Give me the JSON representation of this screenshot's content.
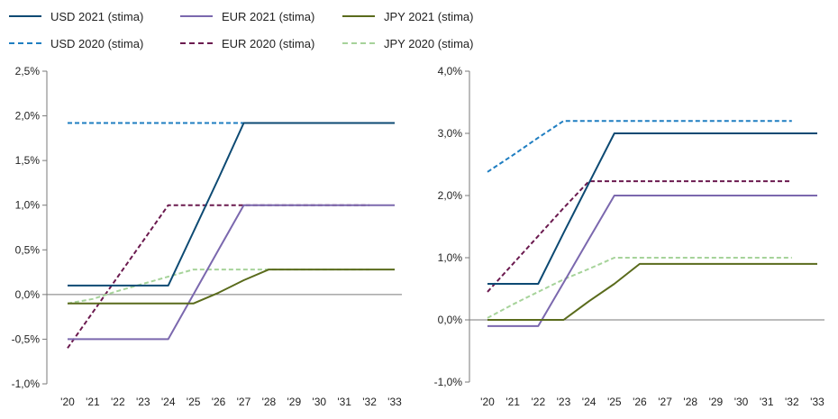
{
  "legend": [
    {
      "label": "USD 2021 (stima)",
      "color": "#0d4a73",
      "dashed": false
    },
    {
      "label": "EUR 2021 (stima)",
      "color": "#7b68ae",
      "dashed": false
    },
    {
      "label": "JPY 2021 (stima)",
      "color": "#5a6b1c",
      "dashed": false
    },
    {
      "label": "USD 2020 (stima)",
      "color": "#1f7ec1",
      "dashed": true
    },
    {
      "label": "EUR 2020 (stima)",
      "color": "#6b1a4f",
      "dashed": true
    },
    {
      "label": "JPY 2020 (stima)",
      "color": "#a6d39a",
      "dashed": true
    }
  ],
  "chart_data": [
    {
      "type": "line",
      "x": [
        "'20",
        "'21",
        "'22",
        "'23",
        "'24",
        "'25",
        "'26",
        "'27",
        "'28",
        "'29",
        "'30",
        "'31",
        "'32",
        "'33"
      ],
      "ylim": [
        -1.0,
        2.5
      ],
      "yticks": [
        "-1,0%",
        "-0,5%",
        "0,0%",
        "0,5%",
        "1,0%",
        "1,5%",
        "2,0%",
        "2,5%"
      ],
      "grid": false,
      "series": [
        {
          "name": "USD 2021 (stima)",
          "color": "#0d4a73",
          "dashed": false,
          "values": [
            0.1,
            0.1,
            0.1,
            0.1,
            0.1,
            0.7,
            1.3,
            1.92,
            1.92,
            1.92,
            1.92,
            1.92,
            1.92,
            1.92
          ]
        },
        {
          "name": "EUR 2021 (stima)",
          "color": "#7b68ae",
          "dashed": false,
          "values": [
            -0.5,
            -0.5,
            -0.5,
            -0.5,
            -0.5,
            0.0,
            0.5,
            1.0,
            1.0,
            1.0,
            1.0,
            1.0,
            1.0,
            1.0
          ]
        },
        {
          "name": "JPY 2021 (stima)",
          "color": "#5a6b1c",
          "dashed": false,
          "values": [
            -0.1,
            -0.1,
            -0.1,
            -0.1,
            -0.1,
            -0.1,
            0.02,
            0.16,
            0.28,
            0.28,
            0.28,
            0.28,
            0.28,
            0.28
          ]
        },
        {
          "name": "USD 2020 (stima)",
          "color": "#1f7ec1",
          "dashed": true,
          "values": [
            1.92,
            1.92,
            1.92,
            1.92,
            1.92,
            1.92,
            1.92,
            1.92,
            1.92,
            1.92,
            1.92,
            1.92,
            1.92,
            1.92
          ]
        },
        {
          "name": "EUR 2020 (stima)",
          "color": "#6b1a4f",
          "dashed": true,
          "values": [
            -0.6,
            -0.2,
            0.2,
            0.6,
            1.0,
            1.0,
            1.0,
            1.0,
            1.0,
            1.0,
            1.0,
            1.0,
            1.0,
            null
          ]
        },
        {
          "name": "JPY 2020 (stima)",
          "color": "#a6d39a",
          "dashed": true,
          "values": [
            -0.1,
            -0.05,
            0.04,
            0.12,
            0.2,
            0.28,
            0.28,
            0.28,
            0.28,
            0.28,
            0.28,
            0.28,
            0.28,
            null
          ]
        }
      ]
    },
    {
      "type": "line",
      "x": [
        "'20",
        "'21",
        "'22",
        "'23",
        "'24",
        "'25",
        "'26",
        "'27",
        "'28",
        "'29",
        "'30",
        "'31",
        "'32",
        "'33"
      ],
      "ylim": [
        -1.0,
        4.0
      ],
      "yticks": [
        "-1,0%",
        "0,0%",
        "1,0%",
        "2,0%",
        "3,0%",
        "4,0%"
      ],
      "grid": false,
      "series": [
        {
          "name": "USD 2021 (stima)",
          "color": "#0d4a73",
          "dashed": false,
          "values": [
            0.58,
            0.58,
            0.58,
            1.4,
            2.2,
            3.0,
            3.0,
            3.0,
            3.0,
            3.0,
            3.0,
            3.0,
            3.0,
            3.0
          ]
        },
        {
          "name": "EUR 2021 (stima)",
          "color": "#7b68ae",
          "dashed": false,
          "values": [
            -0.1,
            -0.1,
            -0.1,
            0.6,
            1.3,
            2.0,
            2.0,
            2.0,
            2.0,
            2.0,
            2.0,
            2.0,
            2.0,
            2.0
          ]
        },
        {
          "name": "JPY 2021 (stima)",
          "color": "#5a6b1c",
          "dashed": false,
          "values": [
            0.0,
            0.0,
            0.0,
            0.0,
            0.3,
            0.58,
            0.9,
            0.9,
            0.9,
            0.9,
            0.9,
            0.9,
            0.9,
            0.9
          ]
        },
        {
          "name": "USD 2020 (stima)",
          "color": "#1f7ec1",
          "dashed": true,
          "values": [
            2.38,
            2.65,
            2.93,
            3.2,
            3.2,
            3.2,
            3.2,
            3.2,
            3.2,
            3.2,
            3.2,
            3.2,
            3.2,
            null
          ]
        },
        {
          "name": "EUR 2020 (stima)",
          "color": "#6b1a4f",
          "dashed": true,
          "values": [
            0.45,
            0.9,
            1.35,
            1.8,
            2.23,
            2.23,
            2.23,
            2.23,
            2.23,
            2.23,
            2.23,
            2.23,
            2.23,
            null
          ]
        },
        {
          "name": "JPY 2020 (stima)",
          "color": "#a6d39a",
          "dashed": true,
          "values": [
            0.03,
            0.25,
            0.45,
            0.65,
            0.82,
            1.0,
            1.0,
            1.0,
            1.0,
            1.0,
            1.0,
            1.0,
            1.0,
            null
          ]
        }
      ]
    }
  ]
}
